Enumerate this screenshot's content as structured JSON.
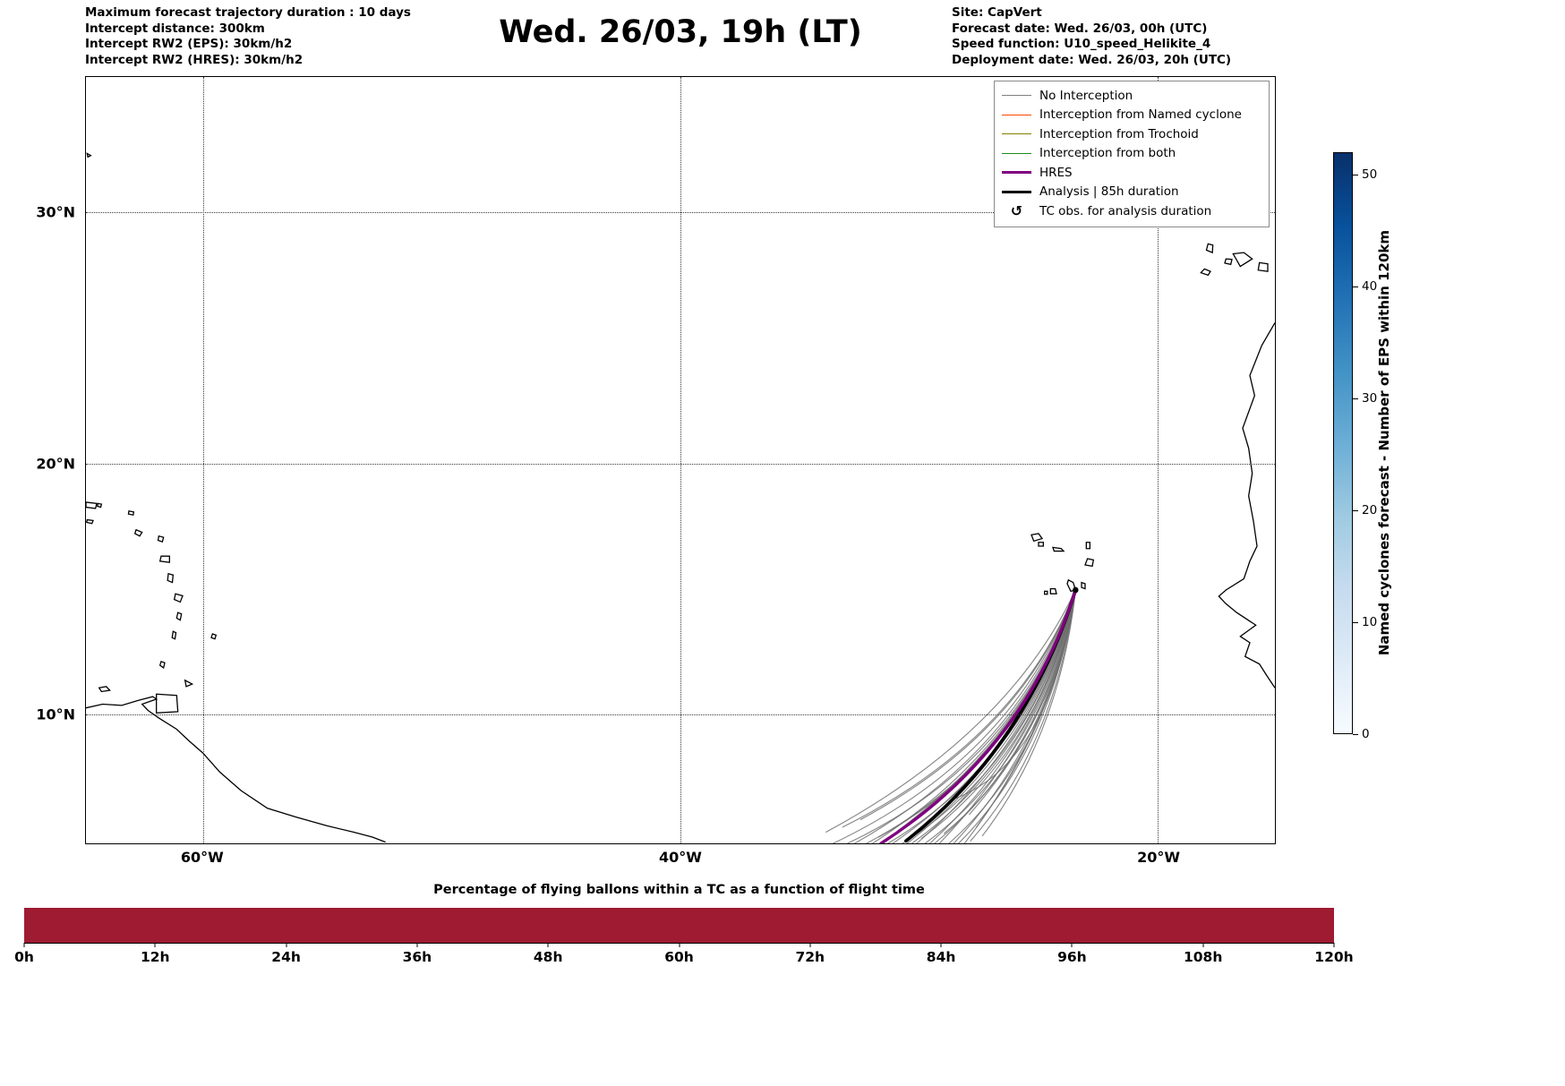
{
  "header": {
    "left_lines": [
      "Maximum forecast trajectory duration : 10 days",
      "Intercept distance: 300km",
      "Intercept RW2 (EPS):  30km/h2",
      "Intercept RW2 (HRES): 30km/h2"
    ],
    "title": "Wed. 26/03, 19h (LT)",
    "right_lines": [
      "Site: CapVert",
      "Forecast date: Wed. 26/03, 00h (UTC)",
      "Speed function: U10_speed_Helikite_4",
      "Deployment date: Wed. 26/03, 20h (UTC)"
    ]
  },
  "legend": {
    "entries": [
      {
        "label": "No Interception",
        "color": "#808080",
        "lw": 1.6
      },
      {
        "label": "Interception from Named cyclone",
        "color": "#ff4500",
        "lw": 1.6
      },
      {
        "label": "Interception from Trochoid",
        "color": "#808000",
        "lw": 1.6
      },
      {
        "label": "Interception from both",
        "color": "#1e8c1e",
        "lw": 1.6
      },
      {
        "label": "HRES",
        "color": "#800080",
        "lw": 3.8
      },
      {
        "label": "Analysis | 85h duration",
        "color": "#000000",
        "lw": 3.8
      },
      {
        "label": "TC obs. for analysis duration",
        "symbol": "↺"
      }
    ]
  },
  "colorbar": {
    "label": "Named cyclones forecast - Number of EPS within 120km",
    "ticks": [
      0,
      10,
      20,
      30,
      40,
      50
    ],
    "vmin": 0,
    "vmax": 52,
    "colors": [
      "#f7fbff",
      "#deebf7",
      "#c6dbef",
      "#9ecae1",
      "#6baed6",
      "#4292c6",
      "#2171b5",
      "#08519c",
      "#08306b"
    ]
  },
  "map": {
    "extent": {
      "lon_min": -64.9,
      "lon_max": -15.1,
      "lat_min": 4.85,
      "lat_max": 35.4
    },
    "grid_lats": [
      30,
      20,
      10
    ],
    "grid_lons": [
      -60,
      -40,
      -20
    ],
    "yticks": [
      {
        "label": "30°N",
        "lat": 30
      },
      {
        "label": "20°N",
        "lat": 20
      },
      {
        "label": "10°N",
        "lat": 10
      }
    ],
    "xticks": [
      {
        "label": "60°W",
        "lon": -60
      },
      {
        "label": "40°W",
        "lon": -40
      },
      {
        "label": "20°W",
        "lon": -20
      }
    ],
    "coastline_paths": [
      "M -15.1 -25.6 L -15.65 -24.7 L -16.15 -23.5 L -15.95 -22.7 L -16.45 -21.4 L -16.2 -20.6 L -16.05 -19.6 L -16.2 -18.7 L -16.0 -17.7 L -15.85 -16.7 L -16.15 -16.1 L -16.4 -15.4 L -17.15 -14.95 L -17.45 -14.7 L -17.15 -14.4 L -16.7 -14.05 L -15.9 -13.55 L -16.55 -13.1 L -16.15 -12.85 L -16.35 -12.3 L -15.75 -12.0 L -15.45 -11.55 L -15.1 -11.05",
      "M -18.05 -27.75 l 0.25 0.1 l -0.1 0.15 l -0.3 -0.1 Z",
      "M -17.9 -28.75 l 0.2 0.05 l -0.02 0.3 l -0.25 -0.1 Z",
      "M -17.15 -28.15 l 0.25 0.02 l -0.05 0.2 l -0.25 -0.05 Z",
      "M -16.85 -28.35 l 0.45 -0.05 l 0.35 0.25 l -0.5 0.3 Z",
      "M -15.75 -28.0 l 0.35 0.05 l 0 0.3 l -0.4 -0.05 Z",
      "M -25.3 -17.15 l 0.3 -0.05 l 0.15 0.2 l -0.35 0.1 Z",
      "M -25.0 -16.85 l 0.2 0 l 0 0.15 l -0.2 0 Z",
      "M -24.4 -16.65 l 0.35 0.05 l 0.1 0.1 l -0.4 0 Z",
      "M -23.0 -16.85 l 0.15 0 l 0 0.25 l -0.15 0 Z",
      "M -22.95 -16.2 l 0.25 0.05 l -0.05 0.25 l -0.3 -0.05 Z",
      "M -23.2 -15.25 l 0.15 0.05 l 0 0.2 l -0.15 -0.05 Z",
      "M -23.75 -15.35 l 0.2 0.1 l 0.1 0.3 l -0.2 0.05 l -0.15 -0.3 Z",
      "M -24.5 -15.0 l 0.2 0 l 0.05 0.2 l -0.25 0 Z",
      "M -24.75 -14.9 l 0.12 0 l 0 0.12 l -0.12 0 Z",
      "M -64.9 -10.25 L -64.2 -10.4 L -63.4 -10.35 L -62.7 -10.55 L -62.1 -10.7 L -61.95 -10.6 L -62.55 -10.4 L -62.3 -10.15 L -61.85 -9.85 L -61.1 -9.4 L -60.6 -8.95 L -60.0 -8.45 L -59.3 -7.7 L -58.4 -6.95 L -57.3 -6.25 L -56.1 -5.9 L -54.8 -5.55 L -53.7 -5.3 L -52.9 -5.1 L -52.35 -4.9",
      "M -61.95 -10.8 l 0.85 0.05 l 0.05 0.65 l -0.9 0.05 Z",
      "M -60.75 -11.35 l 0.3 0.15 l -0.25 0.1 Z",
      "M -64.35 -11.05 l 0.3 -0.05 l 0.15 0.15 l -0.35 0.05 Z",
      "M -61.75 -12.1 l 0.15 0.05 l -0.05 0.2 l -0.15 -0.1 Z",
      "M -61.25 -13.3 l 0.12 0.05 l -0.04 0.25 l -0.12 -0.05 Z",
      "M -59.6 -13.2 l 0.15 0.05 l -0.05 0.15 l -0.15 -0.05 Z",
      "M -61.05 -14.05 l 0.15 0.05 l -0.05 0.25 l -0.15 -0.08 Z",
      "M -61.15 -14.8 l 0.3 0.08 l -0.1 0.25 l -0.25 -0.1 Z",
      "M -61.45 -15.6 l 0.2 0.05 l -0.03 0.3 l -0.2 -0.08 Z",
      "M -61.75 -16.3 l 0.35 0 l 0 0.25 l -0.4 -0.05 Z",
      "M -61.85 -17.1 l 0.2 0.05 l -0.05 0.18 l -0.18 -0.06 Z",
      "M -62.8 -17.35 l 0.25 0.1 l -0.1 0.15 l -0.2 -0.1 Z",
      "M -63.1 -18.1 l 0.2 0.04 l -0.02 0.12 l -0.2 -0.04 Z",
      "M -64.9 -18.45 l 0.45 0.05 l -0.05 0.2 l -0.4 -0.05 Z",
      "M -64.4 -18.4 l 0.15 0.03 l -0.03 0.12 l -0.14 -0.04 Z",
      "M -64.85 -17.75 l 0.25 0.03 l -0.05 0.12 l -0.22 -0.05 Z",
      "M -64.85 -32.35 l 0.15 0.08 l -0.12 0.06 Z"
    ]
  },
  "chart_data": [
    {
      "type": "line",
      "title": "Wed. 26/03, 19h (LT)",
      "xlabel": "",
      "ylabel": "",
      "x_range_lon": [
        -64.9,
        -15.1
      ],
      "y_range_lat": [
        4.85,
        35.4
      ],
      "xticks": [
        "60°W",
        "40°W",
        "20°W"
      ],
      "yticks": [
        "30°N",
        "20°N",
        "10°N"
      ],
      "grid": true,
      "legend_position": "upper right",
      "launch_point_lonlat": [
        -23.45,
        14.95
      ],
      "eps_color": "#6f6f6f",
      "eps_trajectories_via_end": [
        [
          -25.98,
          8.3,
          -33.6,
          4.85
        ],
        [
          -25.86,
          9.0,
          -33.2,
          5.5
        ],
        [
          -25.8,
          8.1,
          -33.0,
          4.85
        ],
        [
          -25.71,
          8.6,
          -32.7,
          4.85
        ],
        [
          -25.64,
          9.3,
          -32.45,
          5.8
        ],
        [
          -25.56,
          8.2,
          -32.2,
          4.85
        ],
        [
          -25.49,
          8.8,
          -31.95,
          4.85
        ],
        [
          -25.41,
          8.4,
          -31.7,
          5.1
        ],
        [
          -25.35,
          9.1,
          -31.5,
          4.85
        ],
        [
          -25.29,
          8.3,
          -31.3,
          4.85
        ],
        [
          -25.23,
          8.7,
          -31.1,
          4.85
        ],
        [
          -25.17,
          9.4,
          -30.9,
          5.35
        ],
        [
          -25.11,
          8.2,
          -30.7,
          4.85
        ],
        [
          -25.05,
          8.9,
          -30.5,
          4.85
        ],
        [
          -24.99,
          8.5,
          -30.3,
          4.85
        ],
        [
          -24.93,
          9.1,
          -30.1,
          4.85
        ],
        [
          -24.87,
          8.6,
          -29.9,
          5.05
        ],
        [
          -24.83,
          8.3,
          -29.75,
          4.85
        ],
        [
          -24.77,
          9.0,
          -29.55,
          4.85
        ],
        [
          -24.71,
          8.5,
          -29.35,
          4.85
        ],
        [
          -24.65,
          9.3,
          -29.15,
          4.85
        ],
        [
          -24.59,
          8.7,
          -28.95,
          5.25
        ],
        [
          -24.53,
          8.4,
          -28.75,
          4.85
        ],
        [
          -24.47,
          9.0,
          -28.55,
          4.85
        ],
        [
          -24.41,
          8.6,
          -28.35,
          4.85
        ],
        [
          -24.33,
          9.5,
          -28.1,
          4.85
        ],
        [
          -24.26,
          8.8,
          -27.85,
          4.95
        ],
        [
          -24.18,
          9.9,
          -27.6,
          5.5
        ],
        [
          -24.11,
          9.2,
          -27.35,
          5.15
        ],
        [
          -24.5,
          8.0,
          -28.6,
          6.6
        ],
        [
          -26.3,
          9.2,
          -33.9,
          5.3
        ],
        [
          -24.2,
          10.0,
          -27.9,
          6.0
        ]
      ],
      "hres_trajectory": {
        "color": "#800080",
        "via": [
          -25.55,
          8.55
        ],
        "end": [
          -31.6,
          4.85
        ]
      },
      "analysis_trajectory": {
        "color": "#000000",
        "via": [
          -25.5,
          8.7
        ],
        "end": [
          -30.55,
          4.95
        ],
        "duration_label": "85h"
      }
    },
    {
      "type": "bar",
      "title": "Percentage of flying ballons within a TC as a function of flight time",
      "categories": [
        "0h",
        "12h",
        "24h",
        "36h",
        "48h",
        "60h",
        "72h",
        "84h",
        "96h",
        "108h",
        "120h"
      ],
      "x_range_hours": [
        0,
        120
      ],
      "value_percent_constant": 100,
      "ylim": [
        0,
        100
      ],
      "bar_color": "#9e1b32"
    }
  ],
  "bottom": {
    "title": "Percentage of flying ballons within a TC as a function of flight time"
  }
}
